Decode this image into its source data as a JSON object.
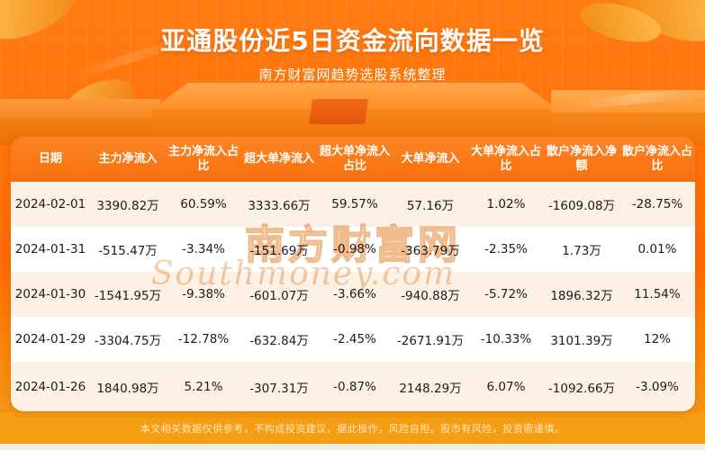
{
  "header": {
    "title": "亚通股份近5日资金流向数据一览",
    "subtitle": "南方财富网趋势选股系统整理"
  },
  "watermark": {
    "line1": "南方财富网",
    "line2": "Southmoney.com"
  },
  "chart_data": {
    "type": "table",
    "title": "亚通股份近5日资金流向数据一览",
    "headers": [
      "日期",
      "主力净流入",
      "主力净流入占比",
      "超大单净流入",
      "超大单净流入占比",
      "大单净流入",
      "大单净流入占比",
      "散户净流入净额",
      "散户净流入占比"
    ],
    "rows": [
      [
        "2024-02-01",
        "3390.82万",
        "60.59%",
        "3333.66万",
        "59.57%",
        "57.16万",
        "1.02%",
        "-1609.08万",
        "-28.75%"
      ],
      [
        "2024-01-31",
        "-515.47万",
        "-3.34%",
        "-151.69万",
        "-0.98%",
        "-363.79万",
        "-2.35%",
        "1.73万",
        "0.01%"
      ],
      [
        "2024-01-30",
        "-1541.95万",
        "-9.38%",
        "-601.07万",
        "-3.66%",
        "-940.88万",
        "-5.72%",
        "1896.32万",
        "11.54%"
      ],
      [
        "2024-01-29",
        "-3304.75万",
        "-12.78%",
        "-632.84万",
        "-2.45%",
        "-2671.91万",
        "-10.33%",
        "3101.39万",
        "12%"
      ],
      [
        "2024-01-26",
        "1840.98万",
        "5.21%",
        "-307.31万",
        "-0.87%",
        "2148.29万",
        "6.07%",
        "-1092.66万",
        "-3.09%"
      ]
    ]
  },
  "footer": {
    "disclaimer": "本文相关数据仅供参考，不构成投资建议，据此操作，风险自担。股市有风险，投资需谨慎。"
  },
  "colors": {
    "background_orange": "#fb6b04",
    "header_orange": "#f8700c",
    "row_cream": "#fcf1e4",
    "row_white": "#ffffff",
    "footer_orange": "#f59e14",
    "bottom_strip": "#f2ebdd",
    "text_dark": "#1c1c1c",
    "watermark": "#f0bc8e"
  }
}
